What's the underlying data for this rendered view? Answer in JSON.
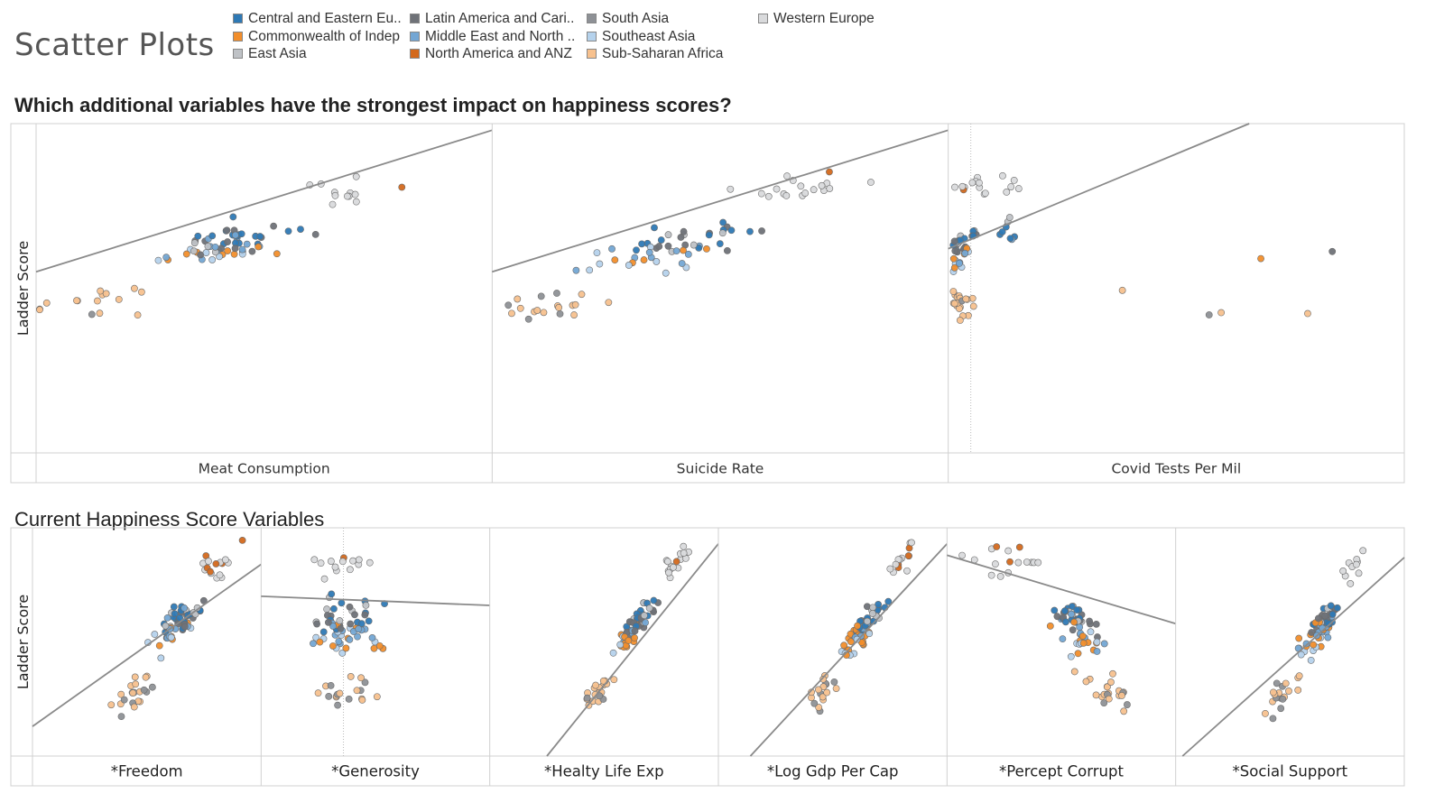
{
  "page_title": "Scatter Plots",
  "question": "Which additional variables have the strongest impact on happiness scores?",
  "section_title": "Current Happiness Score Variables",
  "legend": [
    {
      "label": "Central and Eastern Eu..",
      "color": "#2e79b5"
    },
    {
      "label": "Commonwealth of Indep",
      "color": "#f28e2b"
    },
    {
      "label": "East Asia",
      "color": "#bfc2c6"
    },
    {
      "label": "Latin America and Cari..",
      "color": "#6f7278"
    },
    {
      "label": "Middle East and North ..",
      "color": "#73a6d4"
    },
    {
      "label": "North America and ANZ",
      "color": "#d3691d"
    },
    {
      "label": "South Asia",
      "color": "#8e9196"
    },
    {
      "label": "Southeast Asia",
      "color": "#b5d2ec"
    },
    {
      "label": "Sub-Saharan Africa",
      "color": "#f7c18e"
    },
    {
      "label": "Western Europe",
      "color": "#d9dadc"
    }
  ],
  "chart_data": [
    {
      "type": "scatter",
      "title": "Which additional variables have the strongest impact on happiness scores?",
      "ylabel": "Ladder Score",
      "panels": [
        {
          "xlabel": "Meat Consumption",
          "trend": [
            [
              0.0,
              0.55
            ],
            [
              1.0,
              0.98
            ]
          ],
          "dist": "meat"
        },
        {
          "xlabel": "Suicide Rate",
          "trend": [
            [
              0.0,
              0.55
            ],
            [
              1.0,
              0.98
            ]
          ],
          "dist": "meat"
        },
        {
          "xlabel": "Covid Tests Per Mil",
          "trend": [
            [
              0.0,
              0.62
            ],
            [
              0.66,
              1.0
            ]
          ],
          "dist": "covid"
        }
      ]
    },
    {
      "type": "scatter",
      "title": "Current Happiness Score Variables",
      "ylabel": "Ladder Score",
      "panels": [
        {
          "xlabel": "*Freedom",
          "trend": [
            [
              0.0,
              0.13
            ],
            [
              1.0,
              0.84
            ]
          ],
          "dist": "pos"
        },
        {
          "xlabel": "*Generosity",
          "trend": [
            [
              0.0,
              0.7
            ],
            [
              1.0,
              0.66
            ]
          ],
          "dist": "flat"
        },
        {
          "xlabel": "*Healty Life Exp",
          "trend": [
            [
              0.25,
              0.0
            ],
            [
              1.0,
              0.93
            ]
          ],
          "dist": "steep"
        },
        {
          "xlabel": "*Log Gdp Per Cap",
          "trend": [
            [
              0.14,
              0.0
            ],
            [
              1.0,
              0.93
            ]
          ],
          "dist": "steep"
        },
        {
          "xlabel": "*Percept Corrupt",
          "trend": [
            [
              0.0,
              0.88
            ],
            [
              1.0,
              0.58
            ]
          ],
          "dist": "neg"
        },
        {
          "xlabel": "*Social Support",
          "trend": [
            [
              0.03,
              0.0
            ],
            [
              1.0,
              0.87
            ]
          ],
          "dist": "pos2"
        }
      ]
    }
  ]
}
